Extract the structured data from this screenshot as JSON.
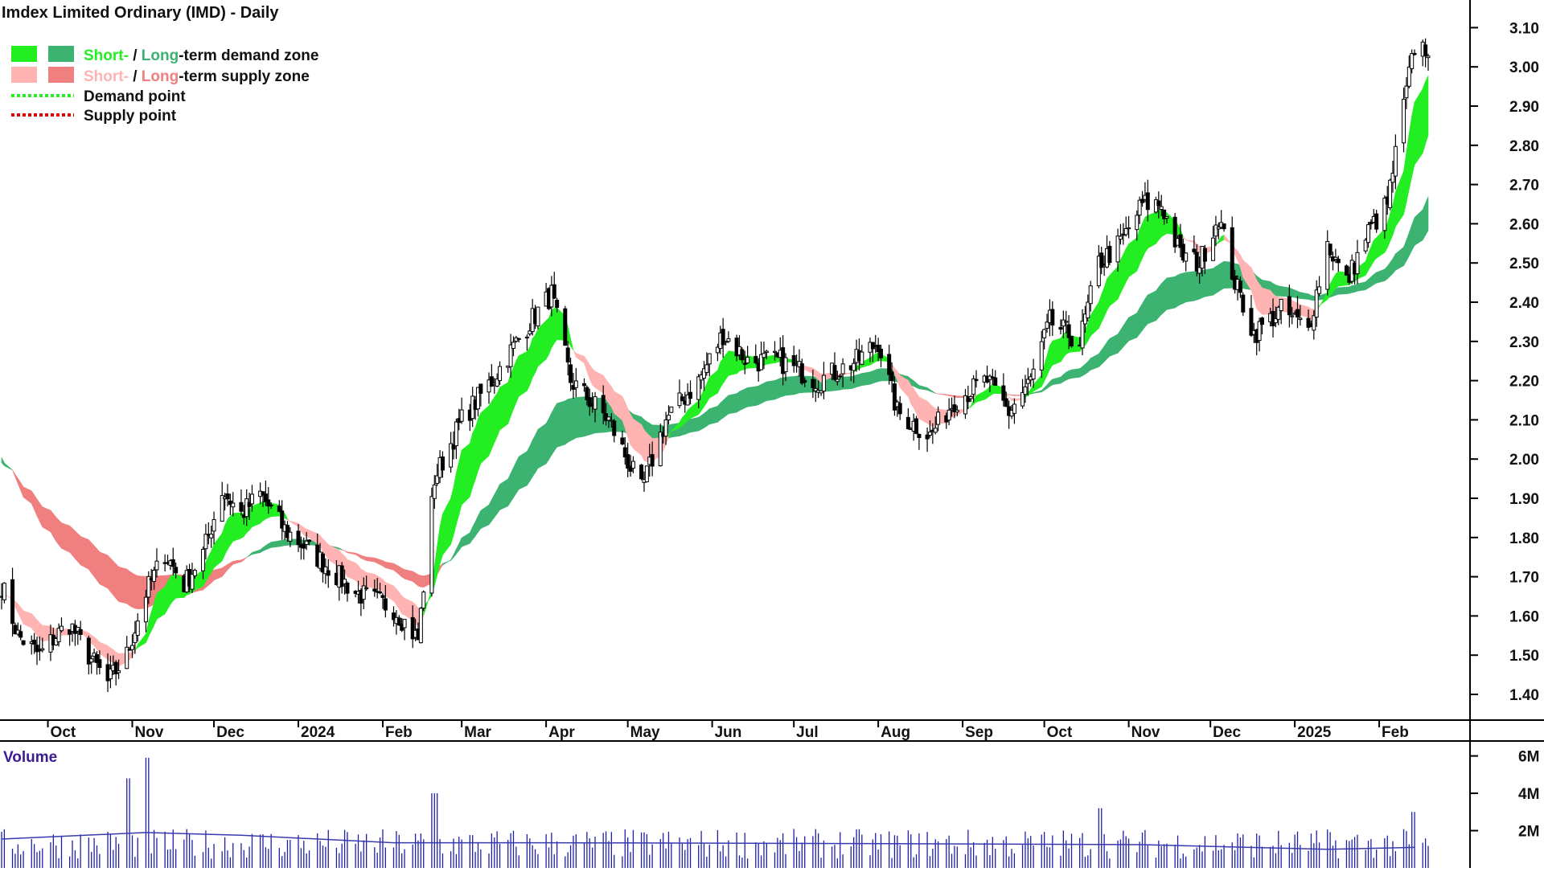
{
  "title": "Imdex Limited Ordinary (IMD) - Daily",
  "legend": {
    "items": [
      {
        "short": "Short-",
        "sep": " / ",
        "long": "Long",
        "rest": "-term demand zone",
        "short_color": "#22ee22",
        "long_color": "#3cb371"
      },
      {
        "short": "Short-",
        "sep": " / ",
        "long": "Long",
        "rest": "-term supply zone",
        "short_color": "#ffb3b3",
        "long_color": "#f08080"
      },
      {
        "label": "Demand point",
        "color": "#22ee22"
      },
      {
        "label": "Supply point",
        "color": "#dd0000"
      }
    ]
  },
  "colors": {
    "short_demand": "#22ee22",
    "long_demand": "#3cb371",
    "short_supply": "#ffb3b3",
    "long_supply": "#f08080",
    "transition": "#ff6a2a",
    "volume_bar": "#1f1fa8",
    "volume_avg": "#3a3ab0",
    "volume_label": "#3b1b8f",
    "candle": "#000000"
  },
  "chart_data": [
    {
      "type": "candlestick",
      "title": "Imdex Limited Ordinary (IMD) - Daily",
      "x_axis_labels": [
        "Oct",
        "Nov",
        "Dec",
        "2024",
        "Feb",
        "Mar",
        "Apr",
        "May",
        "Jun",
        "Jul",
        "Aug",
        "Sep",
        "Oct",
        "Nov",
        "Dec",
        "2025",
        "Feb"
      ],
      "y_axis_labels": [
        "1.40",
        "1.50",
        "1.60",
        "1.70",
        "1.80",
        "1.90",
        "2.00",
        "2.10",
        "2.20",
        "2.30",
        "2.40",
        "2.50",
        "2.60",
        "2.70",
        "2.80",
        "2.90",
        "3.00",
        "3.10"
      ],
      "ylim": [
        1.33,
        3.15
      ],
      "y_axis_side": "right",
      "close_path": [
        [
          "2023-09-14",
          1.68
        ],
        [
          "2023-09-20",
          1.55
        ],
        [
          "2023-09-28",
          1.5
        ],
        [
          "2023-10-04",
          1.55
        ],
        [
          "2023-10-09",
          1.58
        ],
        [
          "2023-10-16",
          1.5
        ],
        [
          "2023-10-23",
          1.43
        ],
        [
          "2023-10-30",
          1.5
        ],
        [
          "2023-11-06",
          1.66
        ],
        [
          "2023-11-13",
          1.76
        ],
        [
          "2023-11-20",
          1.68
        ],
        [
          "2023-11-27",
          1.76
        ],
        [
          "2023-12-04",
          1.92
        ],
        [
          "2023-12-11",
          1.86
        ],
        [
          "2023-12-18",
          1.91
        ],
        [
          "2023-12-27",
          1.82
        ],
        [
          "2024-01-08",
          1.75
        ],
        [
          "2024-01-22",
          1.66
        ],
        [
          "2024-02-05",
          1.62
        ],
        [
          "2024-02-14",
          1.54
        ],
        [
          "2024-02-20",
          1.95
        ],
        [
          "2024-03-01",
          2.1
        ],
        [
          "2024-03-12",
          2.2
        ],
        [
          "2024-03-26",
          2.35
        ],
        [
          "2024-04-03",
          2.42
        ],
        [
          "2024-04-10",
          2.2
        ],
        [
          "2024-04-24",
          2.1
        ],
        [
          "2024-05-06",
          1.92
        ],
        [
          "2024-05-15",
          2.1
        ],
        [
          "2024-05-27",
          2.2
        ],
        [
          "2024-06-05",
          2.32
        ],
        [
          "2024-06-14",
          2.25
        ],
        [
          "2024-06-26",
          2.25
        ],
        [
          "2024-07-10",
          2.2
        ],
        [
          "2024-07-24",
          2.25
        ],
        [
          "2024-08-01",
          2.3
        ],
        [
          "2024-08-08",
          2.12
        ],
        [
          "2024-08-20",
          2.06
        ],
        [
          "2024-08-29",
          2.15
        ],
        [
          "2024-09-10",
          2.2
        ],
        [
          "2024-09-18",
          2.12
        ],
        [
          "2024-09-26",
          2.2
        ],
        [
          "2024-10-03",
          2.35
        ],
        [
          "2024-10-14",
          2.3
        ],
        [
          "2024-10-21",
          2.5
        ],
        [
          "2024-10-29",
          2.55
        ],
        [
          "2024-11-06",
          2.65
        ],
        [
          "2024-11-13",
          2.65
        ],
        [
          "2024-11-20",
          2.52
        ],
        [
          "2024-11-27",
          2.5
        ],
        [
          "2024-12-04",
          2.62
        ],
        [
          "2024-12-10",
          2.45
        ],
        [
          "2024-12-17",
          2.32
        ],
        [
          "2024-12-27",
          2.38
        ],
        [
          "2025-01-06",
          2.33
        ],
        [
          "2025-01-13",
          2.55
        ],
        [
          "2025-01-20",
          2.45
        ],
        [
          "2025-01-28",
          2.58
        ],
        [
          "2025-02-04",
          2.65
        ],
        [
          "2025-02-10",
          2.9
        ],
        [
          "2025-02-14",
          3.05
        ]
      ],
      "high": 3.07,
      "low": 1.37
    },
    {
      "type": "bar",
      "name": "Volume",
      "y_axis_labels": [
        "2M",
        "4M",
        "6M"
      ],
      "ylim": [
        0,
        6.8
      ],
      "unit": "M",
      "peaks": [
        [
          "2023-11-06",
          5.9
        ],
        [
          "2023-10-30",
          4.8
        ],
        [
          "2024-02-20",
          4.0
        ],
        [
          "2024-10-21",
          3.2
        ],
        [
          "2025-02-14",
          3.0
        ]
      ],
      "average_path": [
        [
          "2023-09-14",
          1.55
        ],
        [
          "2023-11-06",
          1.9
        ],
        [
          "2023-12-11",
          1.75
        ],
        [
          "2024-02-05",
          1.35
        ],
        [
          "2024-04-03",
          1.35
        ],
        [
          "2024-08-08",
          1.3
        ],
        [
          "2024-11-06",
          1.25
        ],
        [
          "2025-01-13",
          1.0
        ],
        [
          "2025-02-14",
          1.1
        ]
      ]
    }
  ]
}
